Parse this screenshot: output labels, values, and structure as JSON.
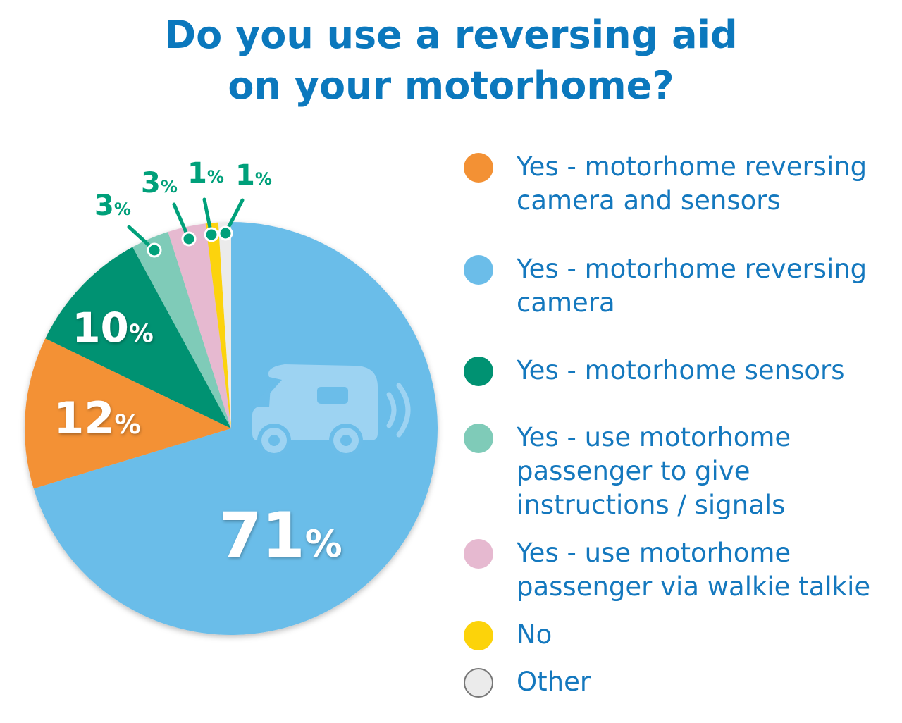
{
  "chart_data": {
    "type": "pie",
    "title": "Do you use a reversing aid on your motorhome?",
    "title_lines": [
      "Do you use a reversing aid",
      "on your motorhome?"
    ],
    "legend_position": "right",
    "unit": "%",
    "slices": [
      {
        "label": "Yes - motorhome reversing camera",
        "value": 71,
        "color": "#6bbde9"
      },
      {
        "label": "Yes - motorhome reversing camera and sensors",
        "value": 12,
        "color": "#f39134"
      },
      {
        "label": "Yes - motorhome sensors",
        "value": 10,
        "color": "#009272"
      },
      {
        "label": "Yes - use motorhome passenger to give instructions / signals",
        "value": 3,
        "color": "#7fcbb8"
      },
      {
        "label": "Yes - use motorhome passenger via walkie talkie",
        "value": 3,
        "color": "#e6b9d0"
      },
      {
        "label": "No",
        "value": 1,
        "color": "#fcd30a"
      },
      {
        "label": "Other",
        "value": 1,
        "color": "#ebebeb"
      }
    ],
    "legend": [
      {
        "label": "Yes - motorhome reversing camera and sensors",
        "color": "#f39134"
      },
      {
        "label": "Yes - motorhome reversing camera",
        "color": "#6bbde9"
      },
      {
        "label": "Yes - motorhome sensors",
        "color": "#009272"
      },
      {
        "label": "Yes - use motorhome passenger to give instructions / signals",
        "color": "#7fcbb8"
      },
      {
        "label": "Yes - use motorhome passenger via walkie talkie",
        "color": "#e6b9d0"
      },
      {
        "label": "No",
        "color": "#fcd30a"
      },
      {
        "label": "Other",
        "color": "#ebebeb"
      }
    ],
    "callout_color": "#00a07a",
    "icon": "motorhome-with-signal-icon"
  }
}
